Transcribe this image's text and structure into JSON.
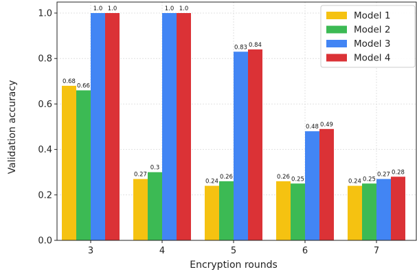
{
  "chart_data": {
    "type": "bar",
    "title": "",
    "xlabel": "Encryption rounds",
    "ylabel": "Validation accuracy",
    "categories": [
      "3",
      "4",
      "5",
      "6",
      "7"
    ],
    "series": [
      {
        "name": "Model 1",
        "color": "#f5c211",
        "values": [
          0.68,
          0.27,
          0.24,
          0.26,
          0.24
        ],
        "labels": [
          "0.68",
          "0.27",
          "0.24",
          "0.26",
          "0.24"
        ]
      },
      {
        "name": "Model 2",
        "color": "#3cba54",
        "values": [
          0.66,
          0.3,
          0.26,
          0.25,
          0.25
        ],
        "labels": [
          "0.66",
          "0.3",
          "0.26",
          "0.25",
          "0.25"
        ]
      },
      {
        "name": "Model 3",
        "color": "#4285f4",
        "values": [
          1.0,
          1.0,
          0.83,
          0.48,
          0.27
        ],
        "labels": [
          "1.0",
          "1.0",
          "0.83",
          "0.48",
          "0.27"
        ]
      },
      {
        "name": "Model 4",
        "color": "#db3236",
        "values": [
          1.0,
          1.0,
          0.84,
          0.49,
          0.28
        ],
        "labels": [
          "1.0",
          "1.0",
          "0.84",
          "0.49",
          "0.28"
        ]
      }
    ],
    "ylim": [
      0,
      1.0
    ],
    "yticks": [
      "0.0",
      "0.2",
      "0.4",
      "0.6",
      "0.8",
      "1.0"
    ],
    "grid": true,
    "legend_position": "top-right"
  }
}
